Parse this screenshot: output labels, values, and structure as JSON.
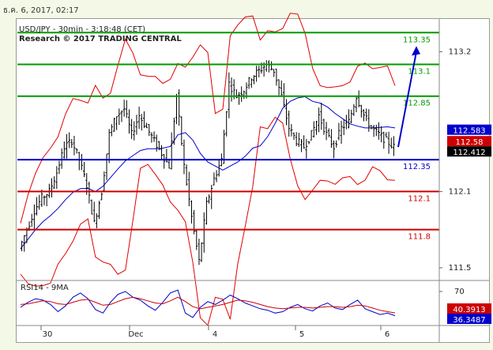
{
  "timestamp": "ธ.ค. 6, 2017, 02:17",
  "header": {
    "symbol_line": "USD/JPY - 30min - 3:18:48 (CET)",
    "credit_line": "Research © 2017 TRADING CENTRAL"
  },
  "colors": {
    "candle": "#000000",
    "bollinger": "#e00000",
    "moving_average": "#0000cc",
    "support_line": "#0000cc",
    "resistance_lines": "#009900",
    "stop_lines": "#cc0000",
    "arrow": "#0000cc",
    "rsi": "#0000cc",
    "rsi_ma": "#cc0000"
  },
  "chart_data": [
    {
      "type": "candlestick",
      "title": "USD/JPY - 30min - 3:18:48 (CET)",
      "ylim": [
        111.4,
        113.42
      ],
      "y_ticks": [
        "113.2",
        "112.1",
        "111.5"
      ],
      "x_ticks": [
        "30",
        "Dec",
        "4",
        "5",
        "6"
      ],
      "approx_close_path": [
        111.65,
        111.8,
        111.95,
        112.05,
        112.1,
        112.25,
        112.45,
        112.5,
        112.35,
        112.15,
        111.85,
        112.1,
        112.55,
        112.7,
        112.75,
        112.55,
        112.7,
        112.6,
        112.5,
        112.4,
        112.3,
        112.85,
        112.3,
        111.9,
        111.55,
        112.0,
        112.2,
        112.35,
        112.95,
        112.85,
        112.9,
        113.0,
        113.05,
        113.1,
        113.05,
        112.85,
        112.6,
        112.5,
        112.45,
        112.55,
        112.7,
        112.55,
        112.45,
        112.6,
        112.65,
        112.85,
        112.7,
        112.6,
        112.55,
        112.5,
        112.45
      ],
      "levels": [
        {
          "value": 113.35,
          "label": "113.35",
          "kind": "target"
        },
        {
          "value": 113.1,
          "label": "113.1",
          "kind": "target"
        },
        {
          "value": 112.85,
          "label": "112.85",
          "kind": "target"
        },
        {
          "value": 112.35,
          "label": "112.35",
          "kind": "pivot"
        },
        {
          "value": 112.1,
          "label": "112.1",
          "kind": "support"
        },
        {
          "value": 111.8,
          "label": "111.8",
          "kind": "support"
        }
      ],
      "price_tags": [
        {
          "label": "112.583",
          "value": 112.583,
          "color": "#0000cc"
        },
        {
          "label": "112.58",
          "value": 112.58,
          "color": "#cc0000"
        },
        {
          "label": "112.412",
          "value": 112.412,
          "color": "#000000"
        }
      ]
    },
    {
      "type": "line",
      "title": "RSI14 - 9MA",
      "ylim": [
        25,
        82
      ],
      "y_ticks": [
        "70"
      ],
      "series": [
        {
          "name": "RSI14",
          "last": "36.3487",
          "values": [
            48,
            55,
            60,
            58,
            52,
            42,
            50,
            62,
            68,
            60,
            45,
            40,
            55,
            66,
            70,
            62,
            58,
            50,
            44,
            55,
            68,
            72,
            40,
            34,
            48,
            56,
            52,
            58,
            65,
            60,
            54,
            50,
            46,
            44,
            40,
            42,
            48,
            52,
            46,
            43,
            50,
            54,
            47,
            45,
            52,
            58,
            46,
            42,
            38,
            40,
            36.35
          ]
        },
        {
          "name": "9MA",
          "last": "40.3913",
          "values": [
            52,
            53,
            55,
            57,
            56,
            53,
            52,
            55,
            58,
            59,
            55,
            51,
            52,
            56,
            60,
            62,
            60,
            57,
            54,
            53,
            57,
            62,
            56,
            49,
            46,
            48,
            50,
            52,
            55,
            58,
            57,
            55,
            52,
            49,
            47,
            46,
            47,
            48,
            48,
            47,
            48,
            49,
            49,
            48,
            49,
            51,
            50,
            47,
            44,
            42,
            40.39
          ]
        }
      ]
    }
  ]
}
